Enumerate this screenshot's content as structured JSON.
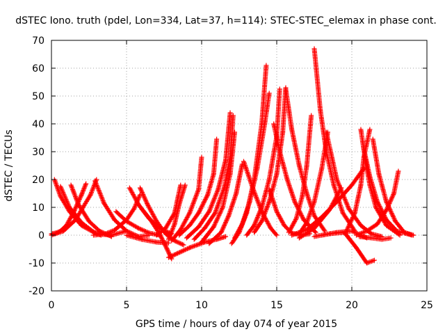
{
  "chart_data": {
    "type": "scatter",
    "title": "dSTEC Iono. truth (pdel, Lon=334, Lat=37, h=114): STEC-STEC_elemax in phase cont.",
    "xlabel": "GPS time / hours of day 074 of year 2015",
    "ylabel": "dSTEC  / TECUs",
    "xlim": [
      0,
      25
    ],
    "ylim": [
      -20,
      70
    ],
    "xticks": [
      0,
      5,
      10,
      15,
      20,
      25
    ],
    "yticks": [
      -20,
      -10,
      0,
      10,
      20,
      30,
      40,
      50,
      60,
      70
    ],
    "grid": true,
    "marker": "+",
    "color": "#ff0000",
    "series": [
      {
        "x": [
          0.0,
          0.3,
          0.6,
          1.0,
          1.5,
          2.0,
          2.3
        ],
        "y": [
          0.5,
          0.8,
          1.5,
          3.5,
          8.5,
          14.5,
          18.5
        ]
      },
      {
        "x": [
          0.2,
          0.6,
          1.2,
          2.0,
          3.0,
          4.0,
          5.0
        ],
        "y": [
          20.0,
          14.0,
          8.5,
          3.5,
          0.5,
          0.0,
          1.5
        ]
      },
      {
        "x": [
          0.6,
          1.2,
          2.0,
          2.8,
          3.3
        ],
        "y": [
          17.5,
          10.0,
          4.5,
          1.2,
          0.0
        ]
      },
      {
        "x": [
          1.3,
          1.8,
          2.5,
          3.2,
          4.0
        ],
        "y": [
          18.0,
          11.0,
          5.0,
          1.5,
          -0.5
        ]
      },
      {
        "x": [
          0.0,
          0.8,
          1.6,
          2.6,
          3.0
        ],
        "y": [
          0.0,
          1.5,
          5.5,
          14.5,
          20.0
        ]
      },
      {
        "x": [
          2.9,
          3.5,
          4.2,
          5.0,
          5.8,
          6.5
        ],
        "y": [
          19.5,
          11.5,
          5.5,
          1.5,
          -0.5,
          0.0
        ]
      },
      {
        "x": [
          2.8,
          3.5,
          4.2,
          5.0,
          5.5,
          5.9
        ],
        "y": [
          0.0,
          0.3,
          1.8,
          5.5,
          9.5,
          14.5
        ]
      },
      {
        "x": [
          4.3,
          5.0,
          5.8,
          6.5,
          7.2
        ],
        "y": [
          8.5,
          5.0,
          2.5,
          0.8,
          0.0
        ]
      },
      {
        "x": [
          5.2,
          5.8,
          6.5,
          7.2,
          8.0
        ],
        "y": [
          17.0,
          11.0,
          6.0,
          2.5,
          0.5
        ]
      },
      {
        "x": [
          5.9,
          6.4,
          7.0,
          7.6,
          8.2,
          8.8
        ],
        "y": [
          17.0,
          11.0,
          5.0,
          0.5,
          -2.0,
          -3.5
        ]
      },
      {
        "x": [
          6.0,
          6.6,
          7.2,
          7.7,
          8.0
        ],
        "y": [
          9.5,
          5.5,
          0.5,
          -5.0,
          -8.5
        ]
      },
      {
        "x": [
          5.0,
          6.0,
          7.0,
          7.8
        ],
        "y": [
          0.0,
          -1.5,
          -2.5,
          -2.8
        ]
      },
      {
        "x": [
          7.8,
          8.4,
          9.2,
          10.2,
          11.0,
          11.6
        ],
        "y": [
          -8.0,
          -6.5,
          -4.5,
          -2.5,
          -1.5,
          -0.5
        ]
      },
      {
        "x": [
          7.8,
          8.2,
          8.5,
          8.9
        ],
        "y": [
          -1.5,
          4.0,
          11.0,
          18.0
        ]
      },
      {
        "x": [
          7.0,
          7.6,
          8.2,
          8.6
        ],
        "y": [
          0.0,
          2.5,
          8.0,
          18.0
        ]
      },
      {
        "x": [
          8.0,
          8.6,
          9.2,
          9.8,
          10.0
        ],
        "y": [
          -2.0,
          2.0,
          8.0,
          16.5,
          28.0
        ]
      },
      {
        "x": [
          8.5,
          9.2,
          9.8,
          10.4,
          10.8,
          11.0
        ],
        "y": [
          0.0,
          3.5,
          8.0,
          14.5,
          22.0,
          34.5
        ]
      },
      {
        "x": [
          9.0,
          9.8,
          10.5,
          11.1,
          11.6,
          11.9
        ],
        "y": [
          -1.0,
          3.0,
          8.5,
          16.5,
          27.0,
          44.0
        ]
      },
      {
        "x": [
          9.5,
          10.2,
          10.9,
          11.5,
          11.9,
          12.1
        ],
        "y": [
          -1.5,
          2.5,
          8.0,
          17.0,
          28.0,
          43.0
        ]
      },
      {
        "x": [
          10.0,
          10.8,
          11.4,
          11.9,
          12.2
        ],
        "y": [
          -2.5,
          3.0,
          10.0,
          22.0,
          37.0
        ]
      },
      {
        "x": [
          10.5,
          11.3,
          11.8,
          12.3,
          12.7
        ],
        "y": [
          -3.0,
          1.0,
          7.0,
          15.0,
          25.5
        ]
      },
      {
        "x": [
          12.0,
          12.5,
          13.0,
          13.5,
          14.0,
          14.3
        ],
        "y": [
          -3.0,
          1.0,
          8.0,
          20.0,
          40.0,
          61.0
        ]
      },
      {
        "x": [
          12.2,
          12.7,
          13.2,
          13.7,
          14.2,
          14.5
        ],
        "y": [
          -1.0,
          4.0,
          12.0,
          24.0,
          40.0,
          51.0
        ]
      },
      {
        "x": [
          13.0,
          13.5,
          14.0,
          14.5,
          15.0,
          15.2
        ],
        "y": [
          0.0,
          3.5,
          10.0,
          20.0,
          35.5,
          52.5
        ]
      },
      {
        "x": [
          13.5,
          14.0,
          14.5,
          15.0,
          15.4,
          15.6
        ],
        "y": [
          1.0,
          5.0,
          12.0,
          22.0,
          37.0,
          53.0
        ]
      },
      {
        "x": [
          12.8,
          13.4,
          14.0,
          14.6,
          15.0
        ],
        "y": [
          26.5,
          17.0,
          8.5,
          2.5,
          0.0
        ]
      },
      {
        "x": [
          14.8,
          15.2,
          15.7,
          16.2,
          16.8,
          17.6
        ],
        "y": [
          40.0,
          30.0,
          20.0,
          12.0,
          5.5,
          1.0
        ]
      },
      {
        "x": [
          15.6,
          16.0,
          16.5,
          17.0,
          17.5,
          18.2
        ],
        "y": [
          52.5,
          38.0,
          25.0,
          15.0,
          7.0,
          1.5
        ]
      },
      {
        "x": [
          14.5,
          15.0,
          15.5,
          16.0,
          16.6,
          17.2
        ],
        "y": [
          16.5,
          8.5,
          3.5,
          0.8,
          0.0,
          0.5
        ]
      },
      {
        "x": [
          15.8,
          16.3,
          16.7,
          17.0,
          17.3
        ],
        "y": [
          1.0,
          6.0,
          14.0,
          25.0,
          43.0
        ]
      },
      {
        "x": [
          17.5,
          17.9,
          18.3,
          18.8,
          19.4,
          20.2
        ],
        "y": [
          67.0,
          45.0,
          30.0,
          18.0,
          8.0,
          1.5
        ]
      },
      {
        "x": [
          16.5,
          17.0,
          17.5,
          18.0,
          18.4
        ],
        "y": [
          0.5,
          4.5,
          12.0,
          24.0,
          37.0
        ]
      },
      {
        "x": [
          18.3,
          19.0,
          19.8,
          20.6,
          21.3,
          22.0
        ],
        "y": [
          37.0,
          20.0,
          9.5,
          3.5,
          0.5,
          -0.5
        ]
      },
      {
        "x": [
          16.0,
          17.0,
          18.0,
          19.0,
          20.0,
          20.8
        ],
        "y": [
          0.0,
          2.0,
          6.5,
          12.0,
          18.0,
          24.0
        ]
      },
      {
        "x": [
          16.5,
          17.5,
          18.5,
          19.3
        ],
        "y": [
          -1.0,
          2.5,
          9.0,
          17.0
        ]
      },
      {
        "x": [
          17.5,
          18.5,
          19.5,
          20.3,
          21.0,
          21.5
        ],
        "y": [
          -0.5,
          0.5,
          1.0,
          -4.5,
          -10.0,
          -9.0
        ]
      },
      {
        "x": [
          18.0,
          19.0,
          20.0,
          21.0
        ],
        "y": [
          0.0,
          1.0,
          1.5,
          -1.0
        ]
      },
      {
        "x": [
          19.6,
          20.2,
          20.6,
          20.8,
          21.2
        ],
        "y": [
          1.0,
          8.0,
          18.0,
          28.0,
          38.0
        ]
      },
      {
        "x": [
          20.6,
          20.9,
          21.2,
          21.6,
          22.3,
          23.2
        ],
        "y": [
          38.0,
          27.0,
          18.0,
          10.0,
          3.5,
          0.0
        ]
      },
      {
        "x": [
          20.8,
          21.2,
          21.7,
          22.3,
          23.0,
          24.0
        ],
        "y": [
          31.0,
          21.0,
          12.0,
          5.5,
          1.5,
          0.0
        ]
      },
      {
        "x": [
          21.4,
          21.8,
          22.3,
          22.9,
          23.5,
          24.1
        ],
        "y": [
          34.5,
          22.0,
          12.0,
          5.0,
          1.0,
          0.0
        ]
      },
      {
        "x": [
          20.3,
          21.0,
          21.7,
          22.3,
          22.8,
          23.1
        ],
        "y": [
          0.0,
          1.5,
          4.0,
          9.0,
          15.0,
          23.0
        ]
      },
      {
        "x": [
          20.5,
          21.3,
          22.0,
          22.6
        ],
        "y": [
          -0.5,
          -1.0,
          -1.5,
          -1.0
        ]
      }
    ]
  }
}
